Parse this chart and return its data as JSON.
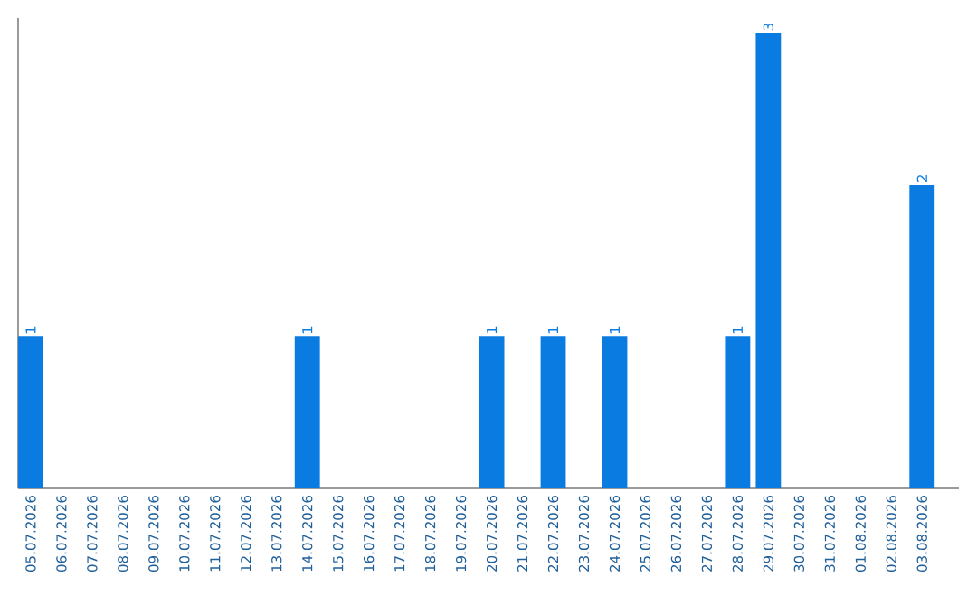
{
  "chart_data": {
    "type": "bar",
    "categories": [
      "05.07.2026",
      "06.07.2026",
      "07.07.2026",
      "08.07.2026",
      "09.07.2026",
      "10.07.2026",
      "11.07.2026",
      "12.07.2026",
      "13.07.2026",
      "14.07.2026",
      "15.07.2026",
      "16.07.2026",
      "17.07.2026",
      "18.07.2026",
      "19.07.2026",
      "20.07.2026",
      "21.07.2026",
      "22.07.2026",
      "23.07.2026",
      "24.07.2026",
      "25.07.2026",
      "26.07.2026",
      "27.07.2026",
      "28.07.2026",
      "29.07.2026",
      "30.07.2026",
      "31.07.2026",
      "01.08.2026",
      "02.08.2026",
      "03.08.2026"
    ],
    "values": [
      1,
      0,
      0,
      0,
      0,
      0,
      0,
      0,
      0,
      1,
      0,
      0,
      0,
      0,
      0,
      1,
      0,
      1,
      0,
      1,
      0,
      0,
      0,
      1,
      3,
      0,
      0,
      0,
      0,
      2
    ],
    "value_labels": [
      "1",
      null,
      null,
      null,
      null,
      null,
      null,
      null,
      null,
      "1",
      null,
      null,
      null,
      null,
      null,
      "1",
      null,
      "1",
      null,
      "1",
      null,
      null,
      null,
      "1",
      "3",
      null,
      null,
      null,
      null,
      "2"
    ],
    "color": "#0a7be0",
    "ylim": [
      0,
      3.1
    ],
    "grid": false,
    "tick_labels": "x"
  }
}
